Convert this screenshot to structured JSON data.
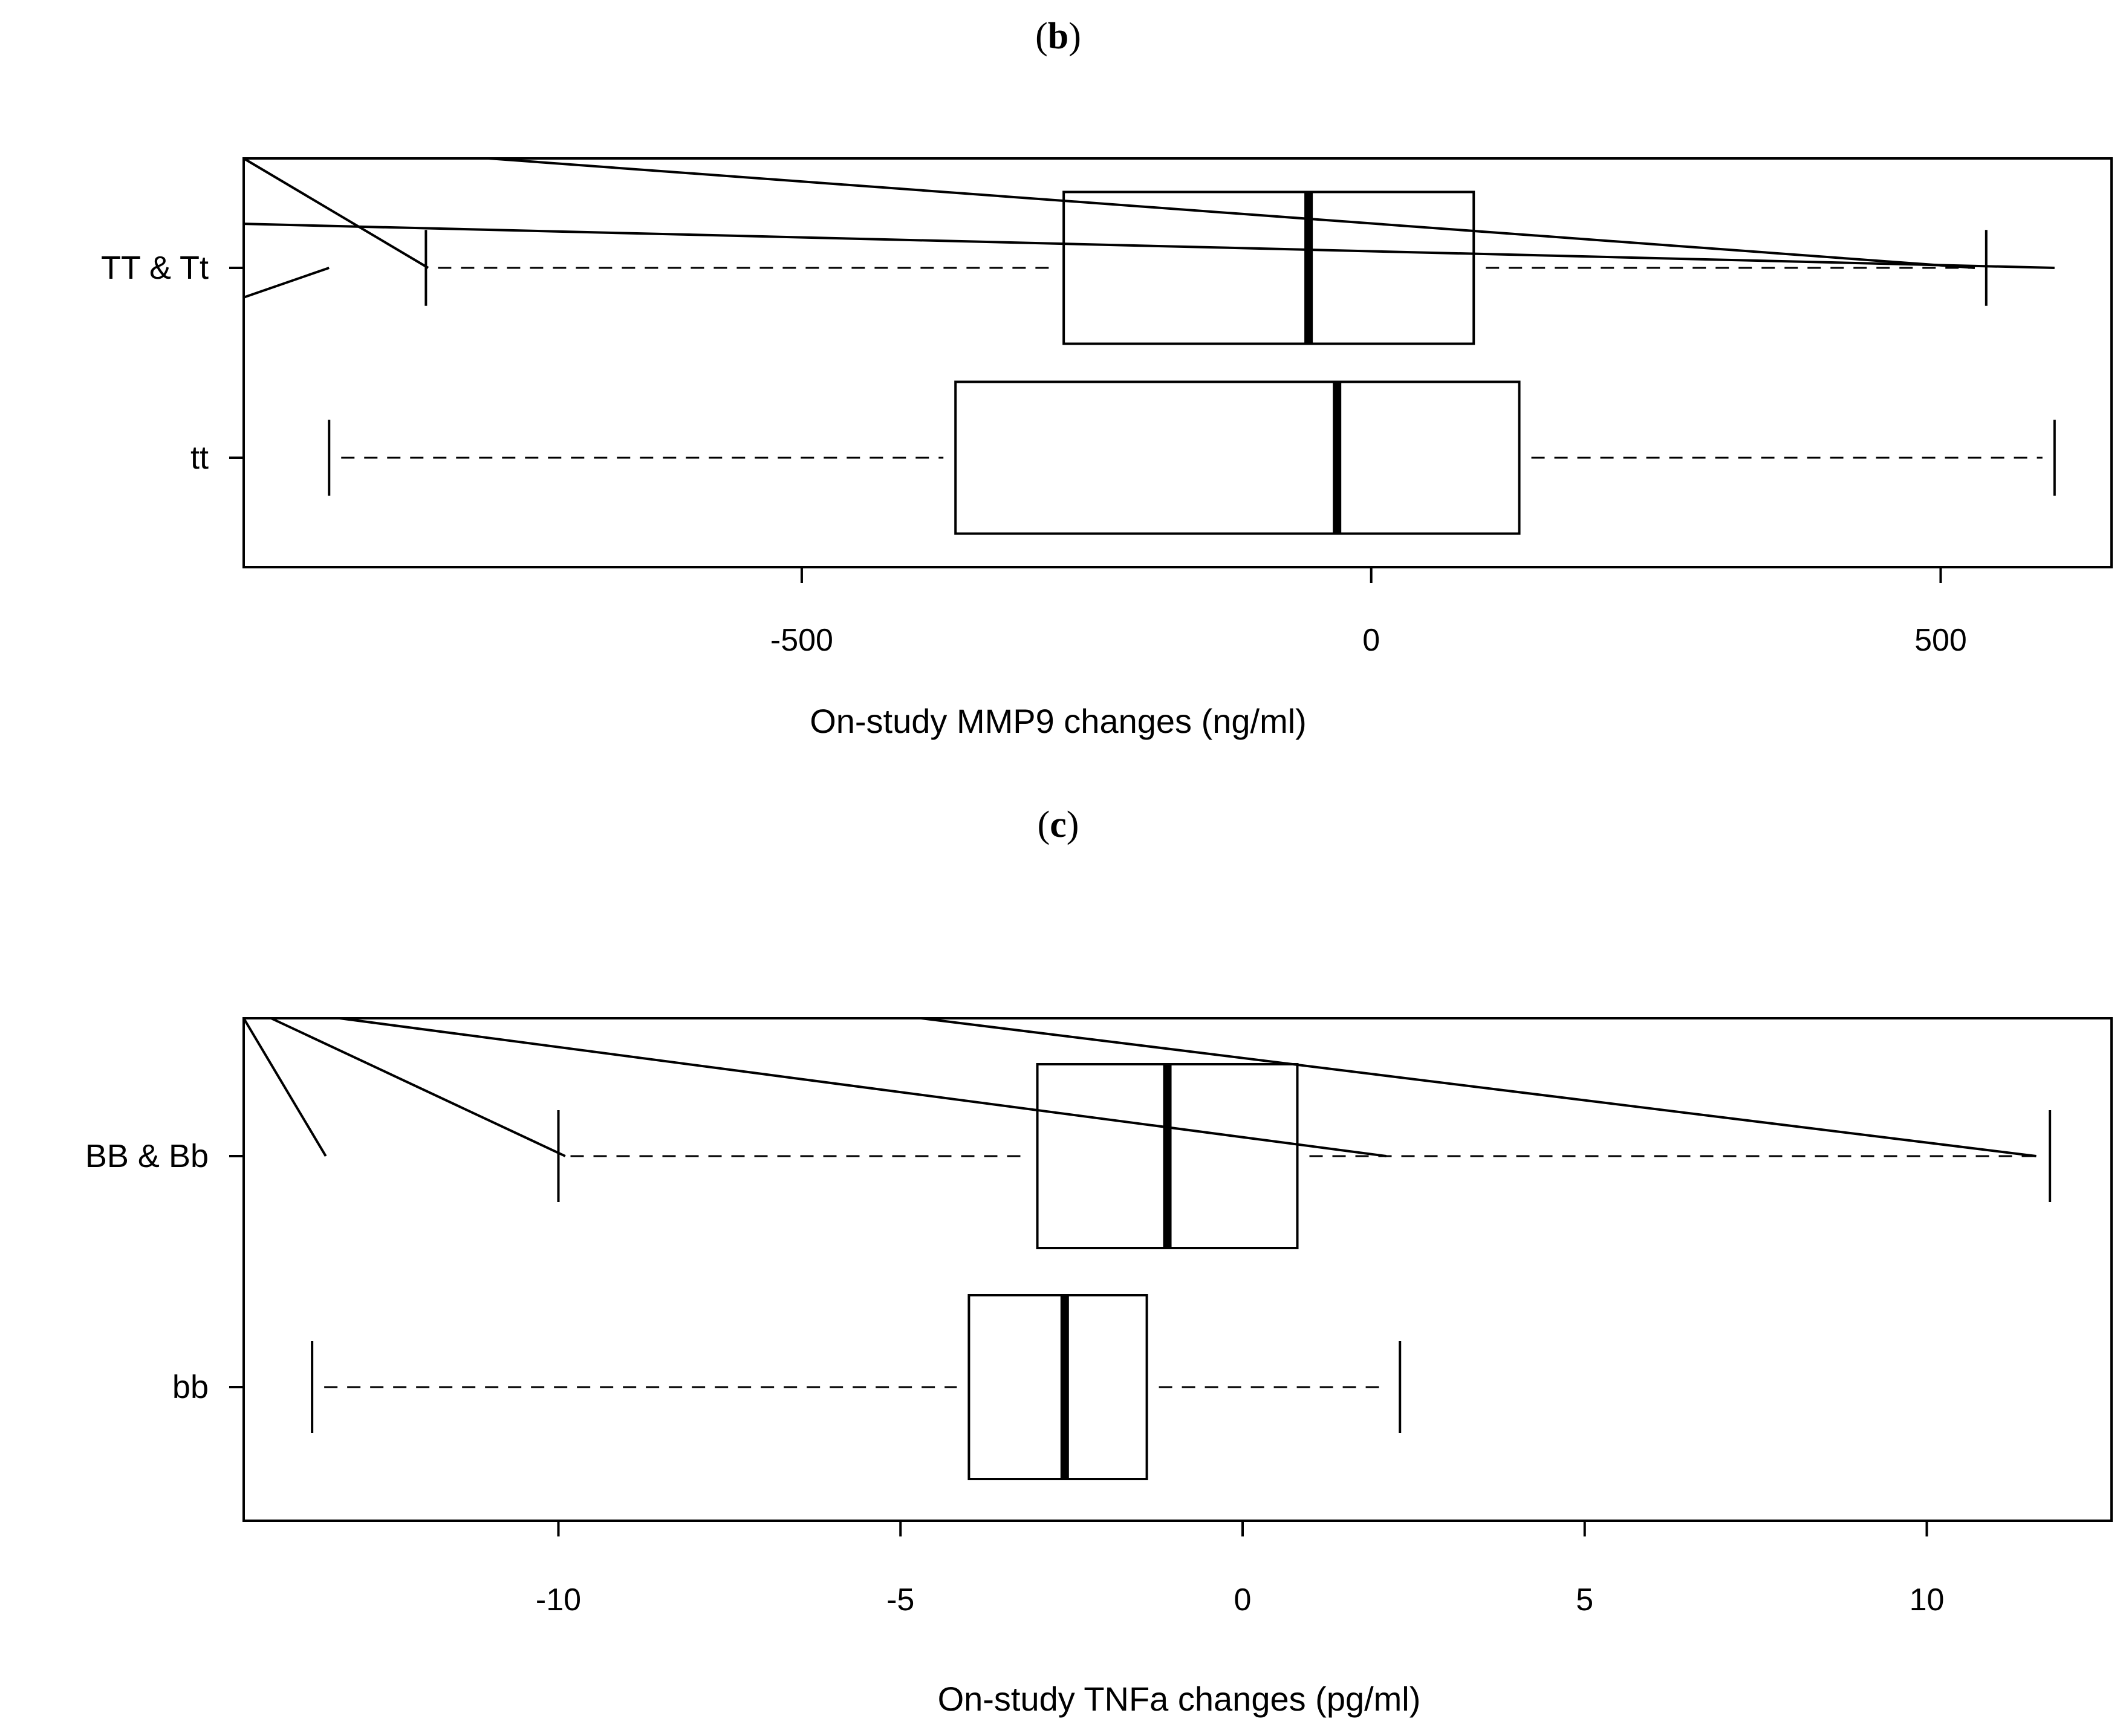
{
  "chart_data": [
    {
      "type": "boxplot",
      "panel_label": "b",
      "orientation": "horizontal",
      "xlabel": "On-study MMP9 changes (ng/ml)",
      "ylabel": "",
      "xlim": [
        -990,
        650
      ],
      "xticks": [
        -500,
        0,
        500
      ],
      "xtick_labels": [
        "-500",
        "0",
        "500"
      ],
      "grid": false,
      "categories": [
        "TT & Tt",
        "tt"
      ],
      "series": [
        {
          "category": "TT & Tt",
          "whisker_low": -830,
          "q1": -270,
          "median": -55,
          "q3": 90,
          "whisker_high": 540
        },
        {
          "category": "tt",
          "whisker_low": -915,
          "q1": -365,
          "median": -30,
          "q3": 130,
          "whisker_high": 600
        }
      ],
      "annotation_lines": [
        {
          "from": [
            -990,
            0.43
          ],
          "to": [
            -828,
            0
          ]
        },
        {
          "from": [
            -990,
            0.16
          ],
          "to": [
            600,
            0
          ]
        },
        {
          "from": [
            -990,
            0.34
          ],
          "to": [
            -915,
            0
          ]
        },
        {
          "from": [
            -775,
            0.43
          ],
          "to": [
            530,
            0
          ]
        }
      ]
    },
    {
      "type": "boxplot",
      "panel_label": "c",
      "orientation": "horizontal",
      "xlabel": "On-study TNFa changes (pg/ml)",
      "ylabel": "",
      "xlim": [
        -14.6,
        12.7
      ],
      "xticks": [
        -10,
        -5,
        0,
        5,
        10
      ],
      "xtick_labels": [
        "-10",
        "-5",
        "0",
        "5",
        "10"
      ],
      "grid": false,
      "categories": [
        "BB & Bb",
        "bb"
      ],
      "series": [
        {
          "category": "BB & Bb",
          "whisker_low": -10.0,
          "q1": -3.0,
          "median": -1.1,
          "q3": 0.8,
          "whisker_high": 11.8
        },
        {
          "category": "bb",
          "whisker_low": -13.6,
          "q1": -4.0,
          "median": -2.6,
          "q3": -1.4,
          "whisker_high": 2.3
        }
      ],
      "annotation_lines": [
        {
          "from": [
            -14.2,
            0.43
          ],
          "to": [
            -9.9,
            0
          ]
        },
        {
          "from": [
            -13.2,
            0.43
          ],
          "to": [
            2.1,
            0
          ]
        },
        {
          "from": [
            -14.6,
            0.4
          ],
          "to": [
            -13.4,
            0
          ]
        },
        {
          "from": [
            -4.7,
            0.43
          ],
          "to": [
            11.6,
            0
          ]
        }
      ]
    }
  ]
}
